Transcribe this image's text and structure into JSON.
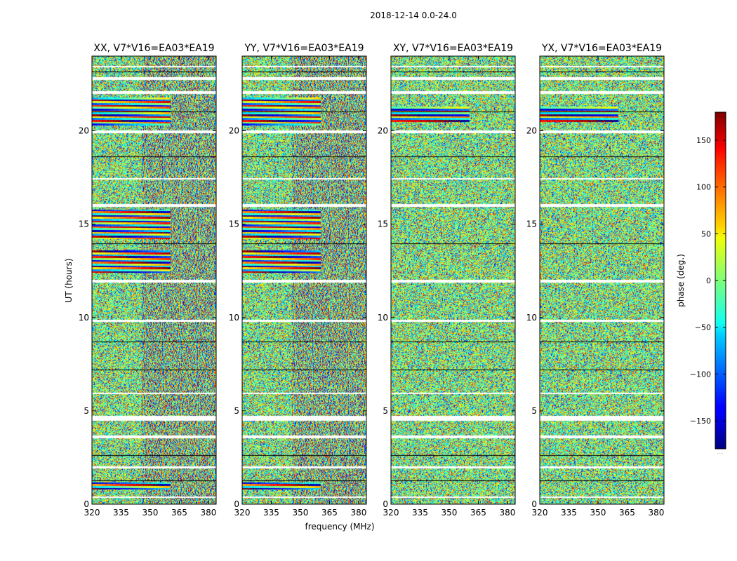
{
  "figure": {
    "suptitle": "2018-12-14 0.0-24.0"
  },
  "chart_data": [
    {
      "type": "heatmap",
      "title": "XX, V7*V16=EA03*EA19",
      "xlabel": "",
      "ylabel": "UT (hours)",
      "x_ticks": [
        "320",
        "335",
        "350",
        "365",
        "380"
      ],
      "y_ticks": [
        "0",
        "5",
        "10",
        "15",
        "20"
      ],
      "xlim": [
        320,
        384
      ],
      "ylim": [
        0,
        24
      ],
      "structure": "coherent",
      "coherent_bands": [
        [
          0.8,
          1.2
        ],
        [
          12.4,
          13.6
        ],
        [
          14.2,
          15.8
        ],
        [
          20.3,
          21.8
        ]
      ]
    },
    {
      "type": "heatmap",
      "title": "YY, V7*V16=EA03*EA19",
      "xlabel": "frequency (MHz)",
      "ylabel": "",
      "x_ticks": [
        "320",
        "335",
        "350",
        "365",
        "380"
      ],
      "y_ticks": [
        "0",
        "5",
        "10",
        "15",
        "20"
      ],
      "xlim": [
        320,
        384
      ],
      "ylim": [
        0,
        24
      ],
      "structure": "coherent",
      "coherent_bands": [
        [
          0.8,
          1.2
        ],
        [
          12.4,
          13.6
        ],
        [
          14.2,
          15.8
        ],
        [
          20.3,
          21.8
        ]
      ]
    },
    {
      "type": "heatmap",
      "title": "XY, V7*V16=EA03*EA19",
      "xlabel": "",
      "ylabel": "",
      "x_ticks": [
        "320",
        "335",
        "350",
        "365",
        "380"
      ],
      "y_ticks": [
        "0",
        "5",
        "10",
        "15",
        "20"
      ],
      "xlim": [
        320,
        384
      ],
      "ylim": [
        0,
        24
      ],
      "structure": "noisy",
      "coherent_bands": [
        [
          20.5,
          21.3
        ]
      ]
    },
    {
      "type": "heatmap",
      "title": "YX, V7*V16=EA03*EA19",
      "xlabel": "",
      "ylabel": "",
      "x_ticks": [
        "320",
        "335",
        "350",
        "365",
        "380"
      ],
      "y_ticks": [
        "0",
        "5",
        "10",
        "15",
        "20"
      ],
      "xlim": [
        320,
        384
      ],
      "ylim": [
        0,
        24
      ],
      "structure": "noisy",
      "coherent_bands": [
        [
          20.5,
          21.3
        ]
      ]
    }
  ],
  "colorbar": {
    "label": "phase (deg.)",
    "colormap": "jet",
    "vmin": -180,
    "vmax": 180,
    "ticks": [
      "150",
      "100",
      "50",
      "0",
      "−50",
      "−100",
      "−150"
    ],
    "tick_values": [
      150,
      100,
      50,
      0,
      -50,
      -100,
      -150
    ],
    "bottom_note": "....."
  }
}
